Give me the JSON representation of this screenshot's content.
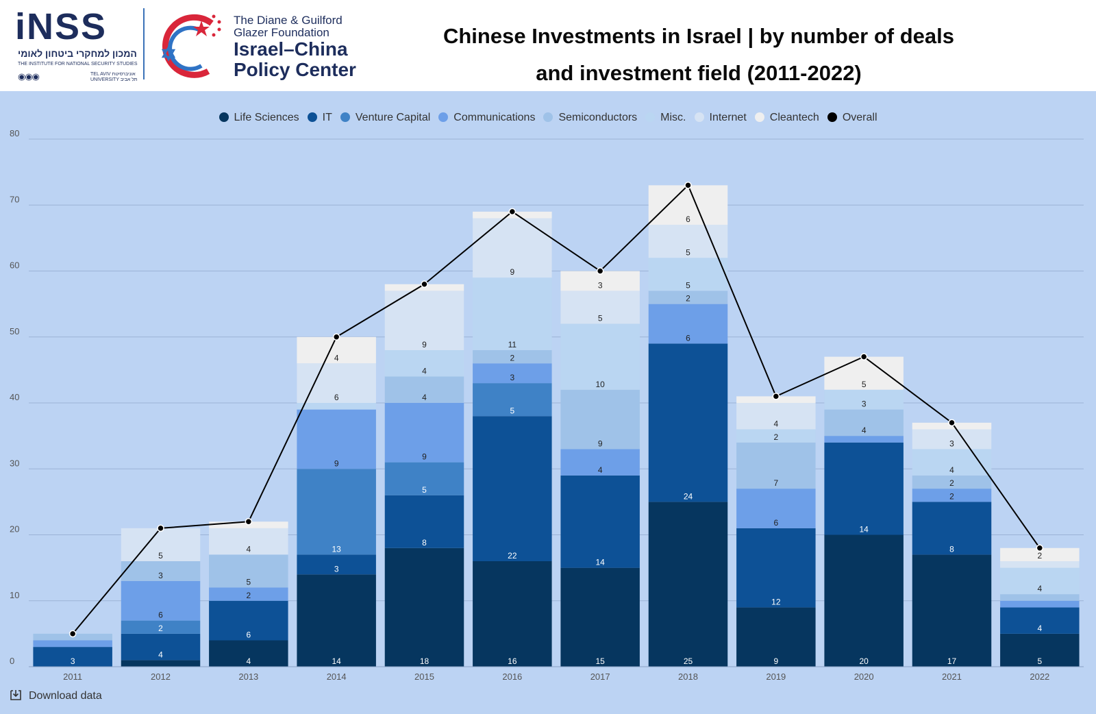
{
  "header": {
    "inss_logo": "iNSS",
    "inss_hebrew": "המכון למחקרי ביטחון לאומי",
    "inss_english": "THE INSTITUTE FOR NATIONAL SECURITY STUDIES",
    "inss_tau_line1": "TEL AVIV אוניברסיטת",
    "inss_tau_line2": "UNIVERSITY תל אביב",
    "icpc_foundation_line1": "The Diane & Guilford",
    "icpc_foundation_line2": "Glazer Foundation",
    "icpc_name_line1": "Israel–China",
    "icpc_name_line2": "Policy Center",
    "title_line1": "Chinese Investments in Israel | by number of deals",
    "title_line2": "and investment field (2011-2022)"
  },
  "download_label": "Download data",
  "colors": {
    "background": "#bcd3f3",
    "gridline": "#9cb3d6",
    "overall_line": "#000000"
  },
  "chart_data": {
    "type": "bar",
    "stacked": true,
    "categories": [
      "2011",
      "2012",
      "2013",
      "2014",
      "2015",
      "2016",
      "2017",
      "2018",
      "2019",
      "2020",
      "2021",
      "2022"
    ],
    "ylim": [
      0,
      80
    ],
    "yticks": [
      0,
      10,
      20,
      30,
      40,
      50,
      60,
      70,
      80
    ],
    "grid": true,
    "legend_position": "top-center",
    "series": [
      {
        "name": "Life Sciences",
        "color": "#06365f",
        "values": [
          0,
          1,
          4,
          14,
          18,
          16,
          15,
          25,
          9,
          20,
          17,
          5
        ],
        "labels": [
          null,
          null,
          "4",
          "14",
          "18",
          "16",
          "15",
          "25",
          "9",
          "20",
          "17",
          "5"
        ]
      },
      {
        "name": "IT",
        "color": "#0d5196",
        "values": [
          3,
          4,
          6,
          3,
          8,
          22,
          14,
          24,
          12,
          14,
          8,
          4
        ],
        "labels": [
          "3",
          "4",
          "6",
          "3",
          "8",
          "22",
          "14",
          "24",
          "12",
          "14",
          "8",
          "4"
        ]
      },
      {
        "name": "Venture Capital",
        "color": "#3f82c6",
        "values": [
          0,
          2,
          0,
          13,
          5,
          5,
          0,
          0,
          0,
          0,
          0,
          0
        ],
        "labels": [
          null,
          "2",
          null,
          "13",
          "5",
          "5",
          null,
          null,
          null,
          null,
          null,
          null
        ]
      },
      {
        "name": "Communications",
        "color": "#6d9fe8",
        "values": [
          1,
          6,
          2,
          9,
          9,
          3,
          4,
          6,
          6,
          1,
          2,
          1
        ],
        "labels": [
          null,
          "6",
          "2",
          "9",
          "9",
          "3",
          "4",
          "6",
          "6",
          null,
          "2",
          null
        ]
      },
      {
        "name": "Semiconductors",
        "color": "#9fc2e8",
        "values": [
          1,
          3,
          5,
          0,
          4,
          2,
          9,
          2,
          7,
          4,
          2,
          1
        ],
        "labels": [
          null,
          "3",
          "5",
          null,
          "4",
          "2",
          "9",
          "2",
          "7",
          "4",
          "2",
          null
        ]
      },
      {
        "name": "Misc.",
        "color": "#bad6f2",
        "values": [
          0,
          0,
          0,
          1,
          4,
          11,
          10,
          5,
          2,
          3,
          4,
          4
        ],
        "labels": [
          null,
          null,
          null,
          null,
          "4",
          "11",
          "10",
          "5",
          "2",
          "3",
          "4",
          "4"
        ]
      },
      {
        "name": "Internet",
        "color": "#d6e3f3",
        "values": [
          0,
          5,
          4,
          6,
          9,
          9,
          5,
          5,
          4,
          0,
          3,
          1
        ],
        "labels": [
          null,
          "5",
          "4",
          "6",
          "9",
          "9",
          "5",
          "5",
          "4",
          null,
          "3",
          null
        ]
      },
      {
        "name": "Cleantech",
        "color": "#efefef",
        "values": [
          0,
          0,
          1,
          4,
          1,
          1,
          3,
          6,
          1,
          5,
          1,
          2
        ],
        "labels": [
          null,
          null,
          null,
          "4",
          null,
          null,
          "3",
          "6",
          null,
          "5",
          null,
          "2"
        ]
      },
      {
        "name": "Overall",
        "color": "#000000",
        "type": "line",
        "values": [
          5,
          21,
          22,
          50,
          58,
          69,
          60,
          73,
          41,
          47,
          37,
          18
        ]
      }
    ]
  }
}
